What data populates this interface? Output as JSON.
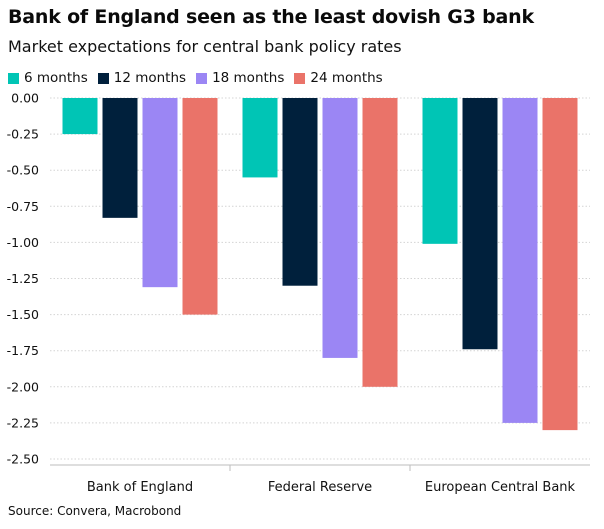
{
  "chart_data": {
    "type": "bar",
    "title": "Bank of England seen as the least dovish G3 bank",
    "subtitle": "Market expectations for central bank policy rates",
    "source": "Source: Convera, Macrobond",
    "categories": [
      "Bank of England",
      "Federal Reserve",
      "European Central Bank"
    ],
    "series": [
      {
        "name": "6 months",
        "color": "#00c5b5",
        "values": [
          -0.25,
          -0.55,
          -1.01
        ]
      },
      {
        "name": "12 months",
        "color": "#00203c",
        "values": [
          -0.83,
          -1.3,
          -1.74
        ]
      },
      {
        "name": "18 months",
        "color": "#9b86f4",
        "values": [
          -1.31,
          -1.8,
          -2.25
        ]
      },
      {
        "name": "24 months",
        "color": "#ea7369",
        "values": [
          -1.5,
          -2.0,
          -2.3
        ]
      }
    ],
    "yticks": [
      "0.00",
      "-0.25",
      "-0.50",
      "-0.75",
      "-1.00",
      "-1.25",
      "-1.50",
      "-1.75",
      "-2.00",
      "-2.25",
      "-2.50"
    ],
    "ylim": [
      -2.5,
      0
    ],
    "grid": true,
    "legend_position": "top-left",
    "xlabel": "",
    "ylabel": ""
  }
}
